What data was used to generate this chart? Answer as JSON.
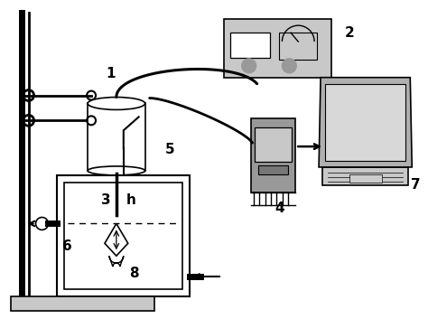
{
  "bg_color": "#ffffff",
  "lc": "#000000",
  "gray_light": "#c8c8c8",
  "gray_mid": "#999999",
  "gray_dark": "#777777",
  "gray_box": "#b0b0b0"
}
